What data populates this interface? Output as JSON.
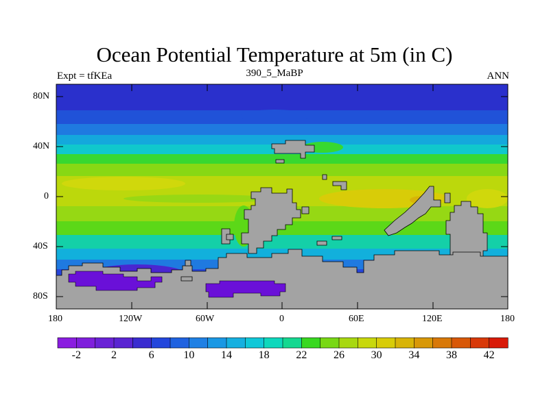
{
  "header": {
    "title": "Ocean Potential Temperature at 5m (in C)",
    "left_note": "Expt = tfKEa",
    "center_note": "390_5_MaBP",
    "right_note": "ANN"
  },
  "axes": {
    "y_ticks": [
      "80N",
      "40N",
      "0",
      "40S",
      "80S"
    ],
    "x_ticks": [
      "180",
      "120W",
      "60W",
      "0",
      "60E",
      "120E",
      "180"
    ],
    "lon_range": [
      -180,
      180
    ],
    "lat_range": [
      -90,
      90
    ]
  },
  "colorbar": {
    "labels": [
      "-2",
      "2",
      "6",
      "10",
      "14",
      "18",
      "22",
      "26",
      "30",
      "34",
      "38",
      "42"
    ],
    "colors": [
      "#8a1de0",
      "#7f1fdc",
      "#6a22d6",
      "#5a24d2",
      "#3a2cd0",
      "#2346dc",
      "#1f62e0",
      "#1f80e4",
      "#1a98e4",
      "#16b0e0",
      "#10c8d8",
      "#0ed8bc",
      "#14d890",
      "#38d820",
      "#78d814",
      "#a8d810",
      "#c8d80c",
      "#d8cc08",
      "#d8b408",
      "#d89808",
      "#d87808",
      "#d85808",
      "#d83808",
      "#d81a08"
    ]
  },
  "land_color": "#a3a3a3",
  "ocean_palette": {
    "polar": "#2233cc",
    "subpolar": "#1f6fe0",
    "midlat": "#18b4d8",
    "warm": "#66d418",
    "tropical": "#c8d80c",
    "hot": "#d8b408",
    "southern": "#6a22d6"
  }
}
